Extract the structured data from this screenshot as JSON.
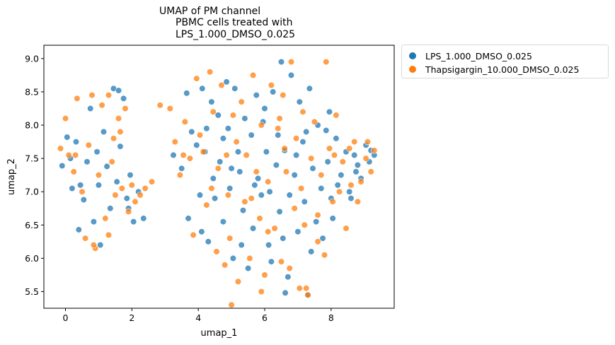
{
  "chart_data": {
    "type": "scatter",
    "title_lines": [
      "UMAP of PM channel",
      "PBMC cells treated with",
      "LPS_1.000_DMSO_0.025"
    ],
    "xlabel": "umap_1",
    "ylabel": "umap_2",
    "xlim": [
      -0.65,
      9.9
    ],
    "ylim": [
      5.25,
      9.2
    ],
    "xticks": [
      0,
      2,
      4,
      6,
      8
    ],
    "yticks": [
      5.5,
      6.0,
      6.5,
      7.0,
      7.5,
      8.0,
      8.5,
      9.0
    ],
    "xtick_labels": [
      "0",
      "2",
      "4",
      "6",
      "8"
    ],
    "ytick_labels": [
      "5.5",
      "6.0",
      "6.5",
      "7.0",
      "7.5",
      "8.0",
      "8.5",
      "9.0"
    ],
    "grid": false,
    "legend_position": "outside-top-right",
    "series": [
      {
        "name": "LPS_1.000_DMSO_0.025",
        "color": "#1f77b4",
        "points": [
          [
            -0.1,
            7.39
          ],
          [
            0.05,
            7.82
          ],
          [
            0.2,
            7.05
          ],
          [
            0.32,
            7.75
          ],
          [
            0.45,
            7.1
          ],
          [
            0.55,
            6.88
          ],
          [
            0.65,
            7.45
          ],
          [
            0.75,
            8.25
          ],
          [
            0.85,
            6.55
          ],
          [
            0.95,
            7.6
          ],
          [
            1.05,
            6.2
          ],
          [
            1.15,
            7.9
          ],
          [
            1.25,
            7.38
          ],
          [
            1.35,
            6.75
          ],
          [
            1.45,
            8.55
          ],
          [
            1.55,
            7.15
          ],
          [
            1.65,
            7.68
          ],
          [
            1.75,
            8.4
          ],
          [
            1.85,
            6.9
          ],
          [
            1.95,
            7.25
          ],
          [
            2.05,
            6.55
          ],
          [
            2.2,
            7.0
          ],
          [
            2.35,
            6.6
          ],
          [
            0.15,
            7.5
          ],
          [
            0.4,
            6.43
          ],
          [
            1.0,
            7.1
          ],
          [
            1.6,
            8.52
          ],
          [
            1.9,
            6.75
          ],
          [
            3.25,
            7.55
          ],
          [
            3.5,
            7.35
          ],
          [
            3.65,
            8.48
          ],
          [
            3.7,
            6.6
          ],
          [
            3.8,
            7.9
          ],
          [
            3.95,
            7.7
          ],
          [
            4.05,
            6.95
          ],
          [
            4.12,
            8.55
          ],
          [
            4.2,
            7.6
          ],
          [
            4.3,
            6.25
          ],
          [
            4.4,
            8.35
          ],
          [
            4.45,
            7.2
          ],
          [
            4.5,
            6.9
          ],
          [
            4.6,
            8.15
          ],
          [
            4.65,
            7.45
          ],
          [
            4.75,
            6.55
          ],
          [
            4.85,
            8.65
          ],
          [
            4.9,
            7.95
          ],
          [
            4.95,
            7.05
          ],
          [
            5.05,
            6.0
          ],
          [
            5.1,
            8.55
          ],
          [
            5.2,
            7.6
          ],
          [
            5.25,
            7.3
          ],
          [
            5.35,
            6.72
          ],
          [
            5.4,
            8.1
          ],
          [
            5.5,
            5.85
          ],
          [
            5.6,
            7.85
          ],
          [
            5.65,
            6.45
          ],
          [
            5.75,
            8.45
          ],
          [
            5.8,
            7.2
          ],
          [
            5.9,
            6.95
          ],
          [
            6.0,
            8.25
          ],
          [
            6.05,
            7.6
          ],
          [
            6.12,
            6.2
          ],
          [
            6.2,
            5.95
          ],
          [
            6.25,
            8.5
          ],
          [
            6.35,
            7.4
          ],
          [
            6.45,
            6.7
          ],
          [
            6.5,
            8.95
          ],
          [
            6.6,
            7.62
          ],
          [
            6.62,
            5.48
          ],
          [
            6.7,
            5.72
          ],
          [
            6.75,
            6.95
          ],
          [
            6.8,
            8.75
          ],
          [
            6.9,
            7.25
          ],
          [
            7.0,
            6.4
          ],
          [
            7.05,
            8.35
          ],
          [
            7.15,
            7.75
          ],
          [
            7.2,
            6.85
          ],
          [
            7.3,
            5.45
          ],
          [
            7.35,
            8.55
          ],
          [
            7.45,
            7.35
          ],
          [
            7.55,
            6.55
          ],
          [
            7.6,
            8.0
          ],
          [
            7.7,
            7.05
          ],
          [
            7.75,
            6.3
          ],
          [
            7.85,
            7.92
          ],
          [
            7.9,
            7.45
          ],
          [
            8.0,
            6.9
          ],
          [
            8.15,
            7.8
          ],
          [
            8.3,
            7.25
          ],
          [
            8.45,
            7.6
          ],
          [
            8.55,
            7.0
          ],
          [
            8.7,
            7.55
          ],
          [
            8.8,
            7.4
          ],
          [
            8.9,
            7.2
          ],
          [
            9.05,
            7.7
          ],
          [
            9.2,
            7.62
          ],
          [
            9.3,
            7.55
          ],
          [
            4.25,
            7.95
          ],
          [
            5.0,
            7.35
          ],
          [
            5.7,
            7.1
          ],
          [
            6.15,
            7.0
          ],
          [
            6.55,
            6.3
          ],
          [
            7.25,
            7.9
          ],
          [
            7.95,
            8.2
          ],
          [
            8.2,
            7.1
          ],
          [
            8.6,
            6.9
          ],
          [
            4.1,
            6.4
          ],
          [
            4.75,
            7.8
          ],
          [
            5.3,
            6.2
          ],
          [
            5.95,
            8.05
          ],
          [
            6.4,
            7.85
          ],
          [
            6.95,
            7.55
          ],
          [
            7.4,
            6.1
          ],
          [
            8.05,
            6.6
          ],
          [
            8.75,
            7.3
          ],
          [
            9.15,
            7.45
          ]
        ]
      },
      {
        "name": "Thapsigargin_10.000_DMSO_0.025",
        "color": "#ff7f0e",
        "points": [
          [
            -0.15,
            7.65
          ],
          [
            0.0,
            8.1
          ],
          [
            0.1,
            7.55
          ],
          [
            0.25,
            7.3
          ],
          [
            0.35,
            8.4
          ],
          [
            0.5,
            7.0
          ],
          [
            0.6,
            6.3
          ],
          [
            0.7,
            7.7
          ],
          [
            0.8,
            8.45
          ],
          [
            0.9,
            6.15
          ],
          [
            1.0,
            7.25
          ],
          [
            1.1,
            8.3
          ],
          [
            1.2,
            6.6
          ],
          [
            1.3,
            8.45
          ],
          [
            1.4,
            7.45
          ],
          [
            1.5,
            6.95
          ],
          [
            1.6,
            8.1
          ],
          [
            1.7,
            7.05
          ],
          [
            1.8,
            8.25
          ],
          [
            1.9,
            6.7
          ],
          [
            2.0,
            7.1
          ],
          [
            2.1,
            6.85
          ],
          [
            2.25,
            6.95
          ],
          [
            2.4,
            7.05
          ],
          [
            2.6,
            7.15
          ],
          [
            0.85,
            6.2
          ],
          [
            1.3,
            6.35
          ],
          [
            1.65,
            7.9
          ],
          [
            1.45,
            7.8
          ],
          [
            0.3,
            7.55
          ],
          [
            2.85,
            8.3
          ],
          [
            3.15,
            8.25
          ],
          [
            3.3,
            7.75
          ],
          [
            3.45,
            7.25
          ],
          [
            3.6,
            8.05
          ],
          [
            3.75,
            7.5
          ],
          [
            3.85,
            6.35
          ],
          [
            3.95,
            8.7
          ],
          [
            4.05,
            7.85
          ],
          [
            4.15,
            7.6
          ],
          [
            4.25,
            6.8
          ],
          [
            4.35,
            8.8
          ],
          [
            4.45,
            8.2
          ],
          [
            4.55,
            6.1
          ],
          [
            4.6,
            7.35
          ],
          [
            4.7,
            8.6
          ],
          [
            4.8,
            5.9
          ],
          [
            4.85,
            7.55
          ],
          [
            4.95,
            6.3
          ],
          [
            5.05,
            8.15
          ],
          [
            5.15,
            7.75
          ],
          [
            5.2,
            5.65
          ],
          [
            5.3,
            8.35
          ],
          [
            5.4,
            6.85
          ],
          [
            5.45,
            7.55
          ],
          [
            5.55,
            6.0
          ],
          [
            5.65,
            8.75
          ],
          [
            5.75,
            7.3
          ],
          [
            5.85,
            6.6
          ],
          [
            5.9,
            8.0
          ],
          [
            6.0,
            5.75
          ],
          [
            6.1,
            7.15
          ],
          [
            6.2,
            8.6
          ],
          [
            6.3,
            6.45
          ],
          [
            6.4,
            7.95
          ],
          [
            6.5,
            5.95
          ],
          [
            6.55,
            8.45
          ],
          [
            6.65,
            7.3
          ],
          [
            6.75,
            5.85
          ],
          [
            6.8,
            8.95
          ],
          [
            6.9,
            6.75
          ],
          [
            6.95,
            7.8
          ],
          [
            7.05,
            5.55
          ],
          [
            7.15,
            8.2
          ],
          [
            7.2,
            6.5
          ],
          [
            7.3,
            5.45
          ],
          [
            7.4,
            7.5
          ],
          [
            7.5,
            8.05
          ],
          [
            7.6,
            6.25
          ],
          [
            7.7,
            7.25
          ],
          [
            7.8,
            6.05
          ],
          [
            7.85,
            8.95
          ],
          [
            7.95,
            7.65
          ],
          [
            8.05,
            6.85
          ],
          [
            8.15,
            8.15
          ],
          [
            8.25,
            7.0
          ],
          [
            8.35,
            7.45
          ],
          [
            8.45,
            6.45
          ],
          [
            8.6,
            7.1
          ],
          [
            8.7,
            7.75
          ],
          [
            8.8,
            6.85
          ],
          [
            8.9,
            7.15
          ],
          [
            9.05,
            7.5
          ],
          [
            9.2,
            7.3
          ],
          [
            9.3,
            7.62
          ],
          [
            3.55,
            7.55
          ],
          [
            4.4,
            7.05
          ],
          [
            4.9,
            6.95
          ],
          [
            5.6,
            6.9
          ],
          [
            6.1,
            6.4
          ],
          [
            6.6,
            7.65
          ],
          [
            7.1,
            7.05
          ],
          [
            7.6,
            6.65
          ],
          [
            8.1,
            7.55
          ],
          [
            8.55,
            7.65
          ],
          [
            9.1,
            7.75
          ],
          [
            5.0,
            5.3
          ],
          [
            5.9,
            5.5
          ],
          [
            7.25,
            5.55
          ],
          [
            6.45,
            8.1
          ]
        ]
      }
    ]
  }
}
